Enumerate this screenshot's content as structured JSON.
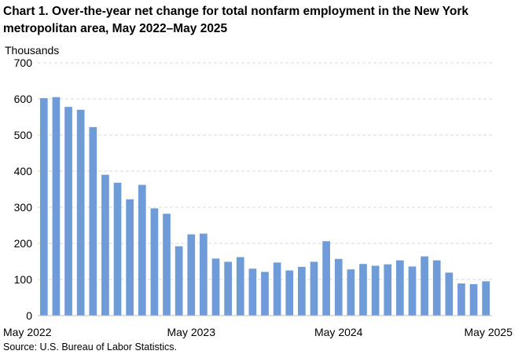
{
  "chart_data": {
    "type": "bar",
    "title": "Chart 1. Over-the-year net change for total nonfarm employment in the New York metropolitan area, May 2022–May 2025",
    "ylabel": "Thousands",
    "xlabel": "",
    "ylim": [
      0,
      700
    ],
    "yticks": [
      "0",
      "100",
      "200",
      "300",
      "400",
      "500",
      "600",
      "700"
    ],
    "xtick_labels": [
      {
        "index": 0,
        "label": "May 2022"
      },
      {
        "index": 12,
        "label": "May 2023"
      },
      {
        "index": 24,
        "label": "May 2024"
      },
      {
        "index": 36,
        "label": "May 2025"
      }
    ],
    "grid": true,
    "color": "#6f9bd8",
    "categories": [
      "May 2022",
      "Jun 2022",
      "Jul 2022",
      "Aug 2022",
      "Sep 2022",
      "Oct 2022",
      "Nov 2022",
      "Dec 2022",
      "Jan 2023",
      "Feb 2023",
      "Mar 2023",
      "Apr 2023",
      "May 2023",
      "Jun 2023",
      "Jul 2023",
      "Aug 2023",
      "Sep 2023",
      "Oct 2023",
      "Nov 2023",
      "Dec 2023",
      "Jan 2024",
      "Feb 2024",
      "Mar 2024",
      "Apr 2024",
      "May 2024",
      "Jun 2024",
      "Jul 2024",
      "Aug 2024",
      "Sep 2024",
      "Oct 2024",
      "Nov 2024",
      "Dec 2024",
      "Jan 2025",
      "Feb 2025",
      "Mar 2025",
      "Apr 2025",
      "May 2025"
    ],
    "values": [
      602,
      605,
      578,
      570,
      522,
      390,
      368,
      322,
      362,
      297,
      282,
      192,
      225,
      227,
      158,
      149,
      162,
      130,
      121,
      147,
      125,
      135,
      149,
      206,
      157,
      128,
      143,
      138,
      142,
      153,
      136,
      164,
      153,
      119,
      89,
      87,
      95
    ]
  },
  "source": "Source: U.S. Bureau of Labor Statistics."
}
